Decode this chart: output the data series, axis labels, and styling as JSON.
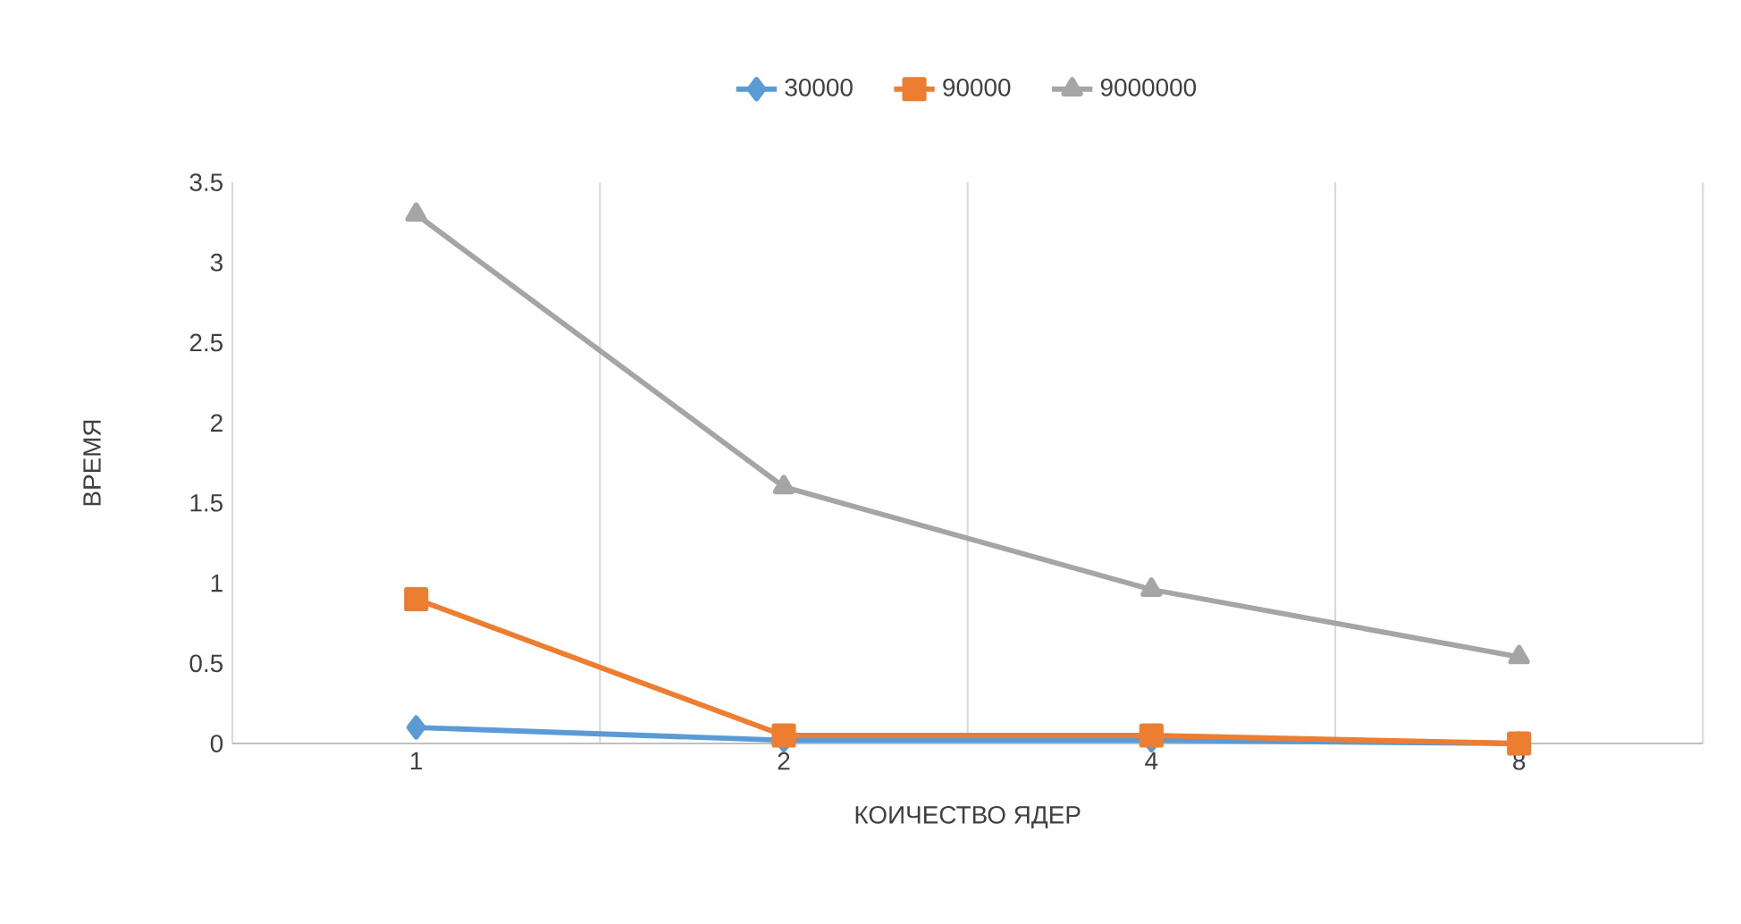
{
  "chart_data": {
    "type": "line",
    "xlabel": "КОИЧЕСТВО ЯДЕР",
    "ylabel": "ВРЕМЯ",
    "categories": [
      "1",
      "2",
      "4",
      "8"
    ],
    "ylim": [
      0,
      3.5
    ],
    "yticks": [
      0,
      0.5,
      1,
      1.5,
      2,
      2.5,
      3,
      3.5
    ],
    "grid": "x",
    "legend": "top",
    "line_style": "solid",
    "series": [
      {
        "name": "30000",
        "color": "#5b9bd5",
        "marker": "diamond",
        "values": [
          0.1,
          0.02,
          0.02,
          0
        ]
      },
      {
        "name": "90000",
        "color": "#ed7d31",
        "marker": "square",
        "values": [
          0.9,
          0.05,
          0.05,
          0
        ]
      },
      {
        "name": "9000000",
        "color": "#a5a5a5",
        "marker": "triangle",
        "values": [
          3.3,
          1.6,
          0.96,
          0.54
        ]
      }
    ]
  }
}
